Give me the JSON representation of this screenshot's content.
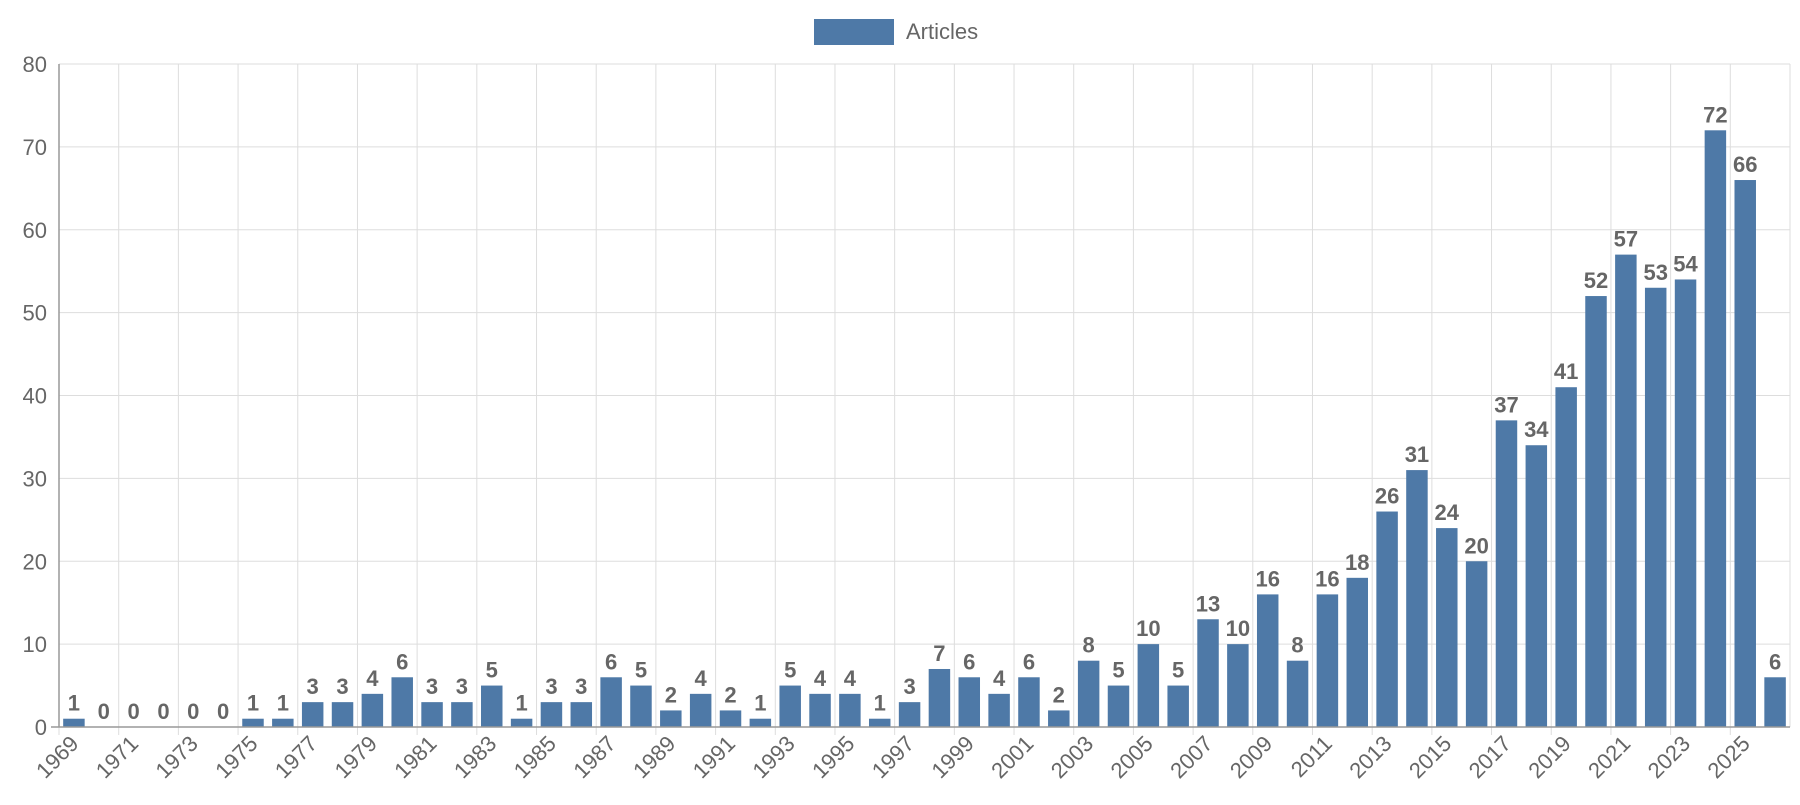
{
  "legend": {
    "label": "Articles",
    "color": "#4e79a7"
  },
  "chart_data": {
    "type": "bar",
    "categories": [
      "1969",
      "1970",
      "1971",
      "1972",
      "1973",
      "1974",
      "1975",
      "1976",
      "1977",
      "1978",
      "1979",
      "1980",
      "1981",
      "1982",
      "1983",
      "1984",
      "1985",
      "1986",
      "1987",
      "1988",
      "1989",
      "1990",
      "1991",
      "1992",
      "1993",
      "1994",
      "1995",
      "1996",
      "1997",
      "1998",
      "1999",
      "2000",
      "2001",
      "2002",
      "2003",
      "2004",
      "2005",
      "2006",
      "2007",
      "2008",
      "2009",
      "2010",
      "2011",
      "2012",
      "2013",
      "2014",
      "2015",
      "2016",
      "2017",
      "2018",
      "2019",
      "2020",
      "2021",
      "2022",
      "2023",
      "2024",
      "2025",
      "2026"
    ],
    "series": [
      {
        "name": "Articles",
        "color": "#4e79a7",
        "values": [
          1,
          0,
          0,
          0,
          0,
          0,
          1,
          1,
          3,
          3,
          4,
          6,
          3,
          3,
          5,
          1,
          3,
          3,
          6,
          5,
          2,
          4,
          2,
          1,
          5,
          4,
          4,
          1,
          3,
          7,
          6,
          4,
          6,
          2,
          8,
          5,
          10,
          5,
          13,
          10,
          16,
          8,
          16,
          18,
          26,
          31,
          24,
          20,
          37,
          34,
          41,
          52,
          57,
          53,
          54,
          72,
          66,
          6
        ]
      }
    ],
    "x_tick_labels": [
      "1969",
      "1971",
      "1973",
      "1975",
      "1977",
      "1979",
      "1981",
      "1983",
      "1985",
      "1987",
      "1989",
      "1991",
      "1993",
      "1995",
      "1997",
      "1999",
      "2001",
      "2003",
      "2005",
      "2007",
      "2009",
      "2011",
      "2013",
      "2015",
      "2017",
      "2019",
      "2021",
      "2023",
      "2025"
    ],
    "y_ticks": [
      0,
      10,
      20,
      30,
      40,
      50,
      60,
      70,
      80
    ],
    "ylim": [
      0,
      80
    ],
    "grid": true,
    "legend_position": "top-center",
    "data_labels": true
  }
}
